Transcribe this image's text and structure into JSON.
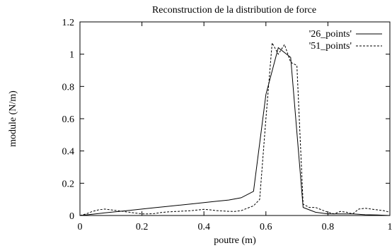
{
  "chart_data": {
    "type": "line",
    "title": "Reconstruction de la distribution de force",
    "xlabel": "poutre (m)",
    "ylabel": "module (N/m)",
    "xlim": [
      0,
      1
    ],
    "ylim": [
      0,
      1.2
    ],
    "x_ticks": [
      0,
      0.2,
      0.4,
      0.6,
      0.8,
      1
    ],
    "x_tick_labels": [
      "0",
      "0.2",
      "0.4",
      "0.6",
      "0.8",
      "1"
    ],
    "y_ticks": [
      0,
      0.2,
      0.4,
      0.6,
      0.8,
      1,
      1.2
    ],
    "y_tick_labels": [
      "0",
      "0.2",
      "0.4",
      "0.6",
      "0.8",
      "1",
      "1.2"
    ],
    "grid": false,
    "legend_position": "top-right",
    "series": [
      {
        "name": "'26_points'",
        "style": "solid",
        "color": "#000000",
        "x": [
          0,
          0.04,
          0.08,
          0.12,
          0.16,
          0.2,
          0.24,
          0.28,
          0.32,
          0.36,
          0.4,
          0.44,
          0.48,
          0.52,
          0.56,
          0.6,
          0.64,
          0.68,
          0.72,
          0.76,
          0.8,
          0.84,
          0.88,
          0.92,
          0.96,
          1
        ],
        "y": [
          0,
          0.008,
          0.016,
          0.024,
          0.032,
          0.04,
          0.048,
          0.056,
          0.064,
          0.072,
          0.08,
          0.088,
          0.096,
          0.11,
          0.15,
          0.75,
          1.04,
          0.98,
          0.05,
          0.02,
          0.01,
          0.01,
          0.01,
          0.005,
          0.003,
          0
        ]
      },
      {
        "name": "'51_points'",
        "style": "dashed",
        "color": "#000000",
        "x": [
          0,
          0.02,
          0.04,
          0.06,
          0.08,
          0.1,
          0.12,
          0.14,
          0.16,
          0.18,
          0.2,
          0.22,
          0.24,
          0.26,
          0.28,
          0.3,
          0.32,
          0.34,
          0.36,
          0.38,
          0.4,
          0.42,
          0.44,
          0.46,
          0.48,
          0.5,
          0.52,
          0.54,
          0.56,
          0.58,
          0.6,
          0.62,
          0.64,
          0.66,
          0.68,
          0.7,
          0.72,
          0.74,
          0.76,
          0.78,
          0.8,
          0.82,
          0.84,
          0.86,
          0.88,
          0.9,
          0.92,
          0.94,
          0.96,
          0.98,
          1
        ],
        "y": [
          0,
          0.01,
          0.025,
          0.035,
          0.04,
          0.035,
          0.03,
          0.025,
          0.02,
          0.015,
          0.01,
          0.01,
          0.012,
          0.018,
          0.022,
          0.024,
          0.026,
          0.028,
          0.03,
          0.034,
          0.038,
          0.035,
          0.03,
          0.028,
          0.026,
          0.025,
          0.03,
          0.045,
          0.06,
          0.1,
          0.6,
          1.07,
          1.0,
          1.06,
          0.95,
          0.93,
          0.07,
          0.05,
          0.05,
          0.035,
          0.02,
          0.01,
          0.025,
          0.02,
          0.01,
          0.04,
          0.045,
          0.04,
          0.035,
          0.03,
          0.02
        ]
      }
    ]
  }
}
